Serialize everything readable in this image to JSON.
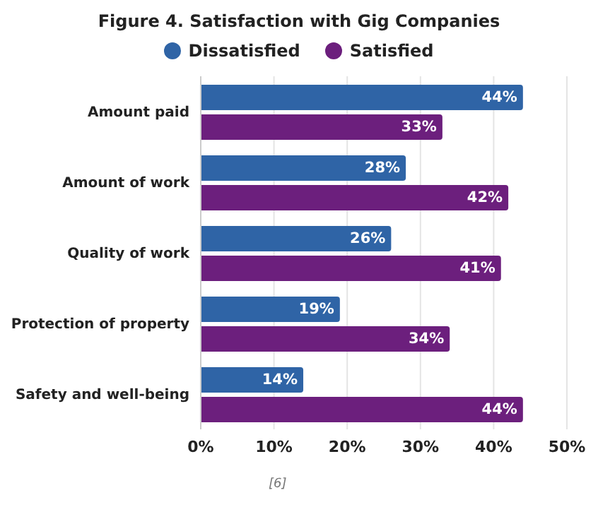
{
  "chart_data": {
    "type": "bar",
    "orientation": "horizontal",
    "title": "Figure 4. Satisfaction with Gig Companies",
    "categories": [
      "Amount paid",
      "Amount of work",
      "Quality of work",
      "Protection of property",
      "Safety and well-being"
    ],
    "series": [
      {
        "name": "Dissatisfied",
        "color": "#2f64a6",
        "values": [
          44,
          28,
          26,
          19,
          14
        ],
        "value_labels": [
          "44%",
          "28%",
          "26%",
          "19%",
          "14%"
        ]
      },
      {
        "name": "Satisfied",
        "color": "#6c1f7d",
        "values": [
          33,
          42,
          41,
          34,
          44
        ],
        "value_labels": [
          "33%",
          "42%",
          "41%",
          "34%",
          "44%"
        ]
      }
    ],
    "xlim": [
      0,
      50
    ],
    "xticks": [
      {
        "value": 0,
        "label": "0%"
      },
      {
        "value": 10,
        "label": "10%"
      },
      {
        "value": 20,
        "label": "20%"
      },
      {
        "value": 30,
        "label": "30%"
      },
      {
        "value": 40,
        "label": "40%"
      },
      {
        "value": 50,
        "label": "50%"
      }
    ],
    "grid": "x",
    "legend": "top",
    "annotations": [
      "[6]"
    ]
  }
}
